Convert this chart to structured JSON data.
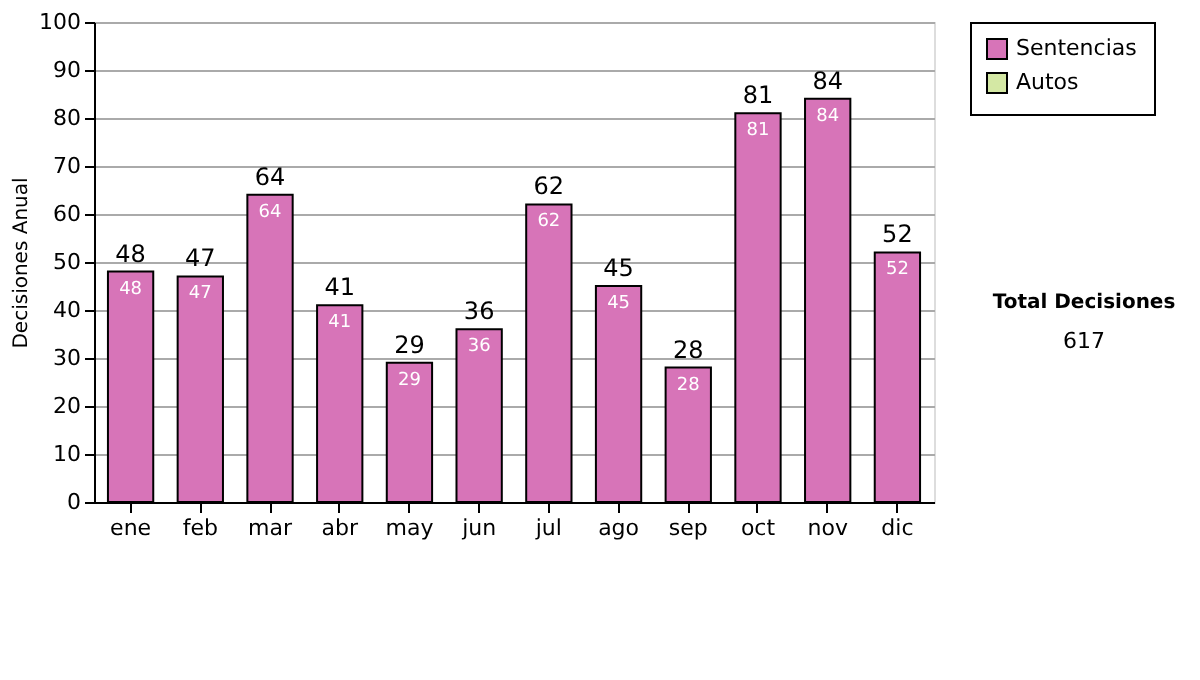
{
  "chart_data": {
    "type": "bar",
    "stacked": true,
    "ylabel": "Decisiones Anual",
    "categories": [
      "ene",
      "feb",
      "mar",
      "abr",
      "may",
      "jun",
      "jul",
      "ago",
      "sep",
      "oct",
      "nov",
      "dic"
    ],
    "series": [
      {
        "name": "Sentencias",
        "color": "#d774b8",
        "values": [
          48,
          47,
          64,
          41,
          29,
          36,
          62,
          45,
          28,
          81,
          84,
          52
        ]
      },
      {
        "name": "Autos",
        "color": "#d4e8a4",
        "values": [
          null,
          null,
          null,
          null,
          null,
          null,
          null,
          null,
          null,
          null,
          null,
          null
        ]
      }
    ],
    "data_labels": true,
    "totals": [
      "48",
      "47",
      "64",
      "41",
      "29",
      "36",
      "62",
      "45",
      "28",
      "81",
      "84",
      "52"
    ],
    "ylim": [
      0,
      100
    ],
    "yticks": [
      0,
      10,
      20,
      30,
      40,
      50,
      60,
      70,
      80,
      90,
      100
    ],
    "grid": "y",
    "legend": "right",
    "annotations": [
      "Total Decisiones",
      "617"
    ]
  }
}
